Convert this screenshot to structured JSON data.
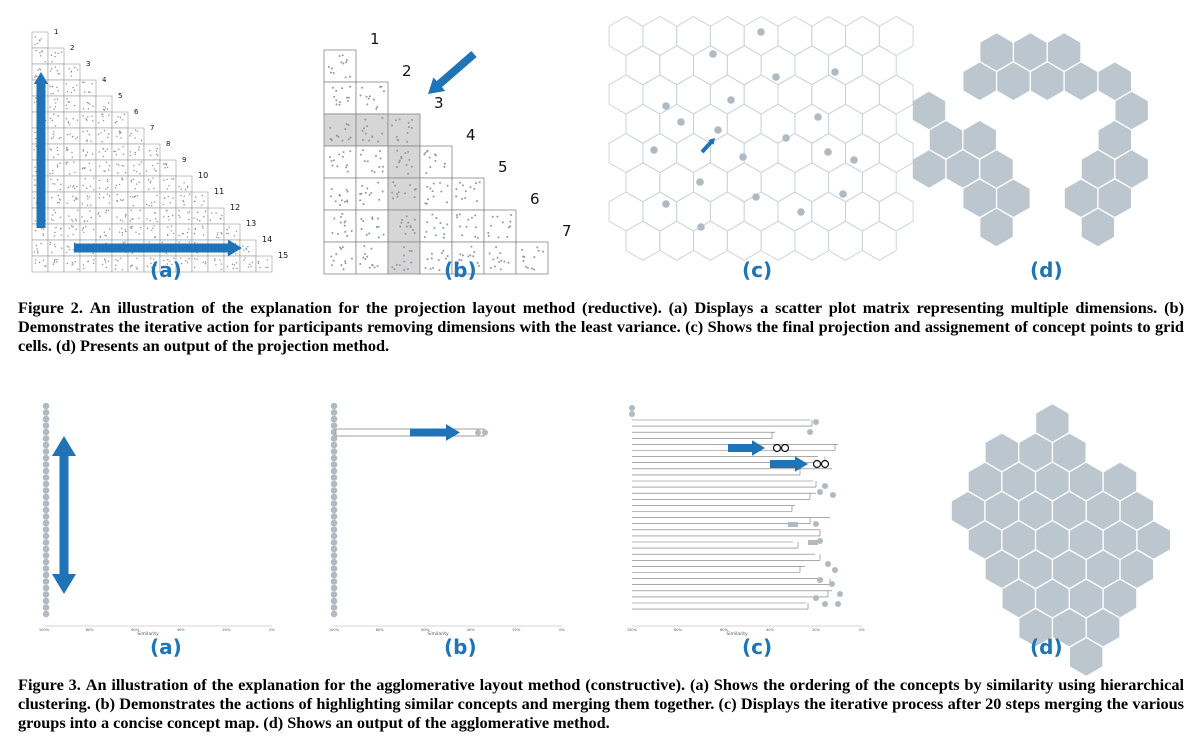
{
  "figure2": {
    "panel_labels": [
      "(a)",
      "(b)",
      "(c)",
      "(d)"
    ],
    "matrix_a_numbers": [
      "1",
      "2",
      "3",
      "4",
      "5",
      "6",
      "7",
      "8",
      "9",
      "10",
      "11",
      "12",
      "13",
      "14",
      "15"
    ],
    "matrix_b_numbers": [
      "1",
      "2",
      "3",
      "4",
      "5",
      "6",
      "7"
    ],
    "caption_label": "Figure 2.",
    "caption_text": "An illustration of the explanation for the projection layout method (reductive). (a) Displays a scatter plot matrix representing multiple dimensions. (b) Demonstrates the iterative action for participants removing dimensions with the least variance. (c) Shows the final projection and assignement of concept points to grid cells. (d) Presents an output of the projection method."
  },
  "figure3": {
    "panel_labels": [
      "(a)",
      "(b)",
      "(c)",
      "(d)"
    ],
    "axis_label": "Similarity",
    "axis_ticks": [
      "100%",
      "80%",
      "60%",
      "40%",
      "20%",
      "0%"
    ],
    "caption_label": "Figure 3.",
    "caption_text": "An illustration of the explanation for the agglomerative layout method (constructive). (a) Shows the ordering of the concepts by similarity using hierarchical clustering. (b) Demonstrates the actions of highlighting similar concepts and merging them together. (c) Displays the iterative process after 20 steps merging the various groups into a concise concept map. (d) Shows an output of the agglomerative method."
  },
  "colors": {
    "accent": "#1f73b7",
    "hex_fill": "#bcc6cf",
    "grid_line": "#c9d2d8",
    "highlight": "#d6d6d6"
  }
}
